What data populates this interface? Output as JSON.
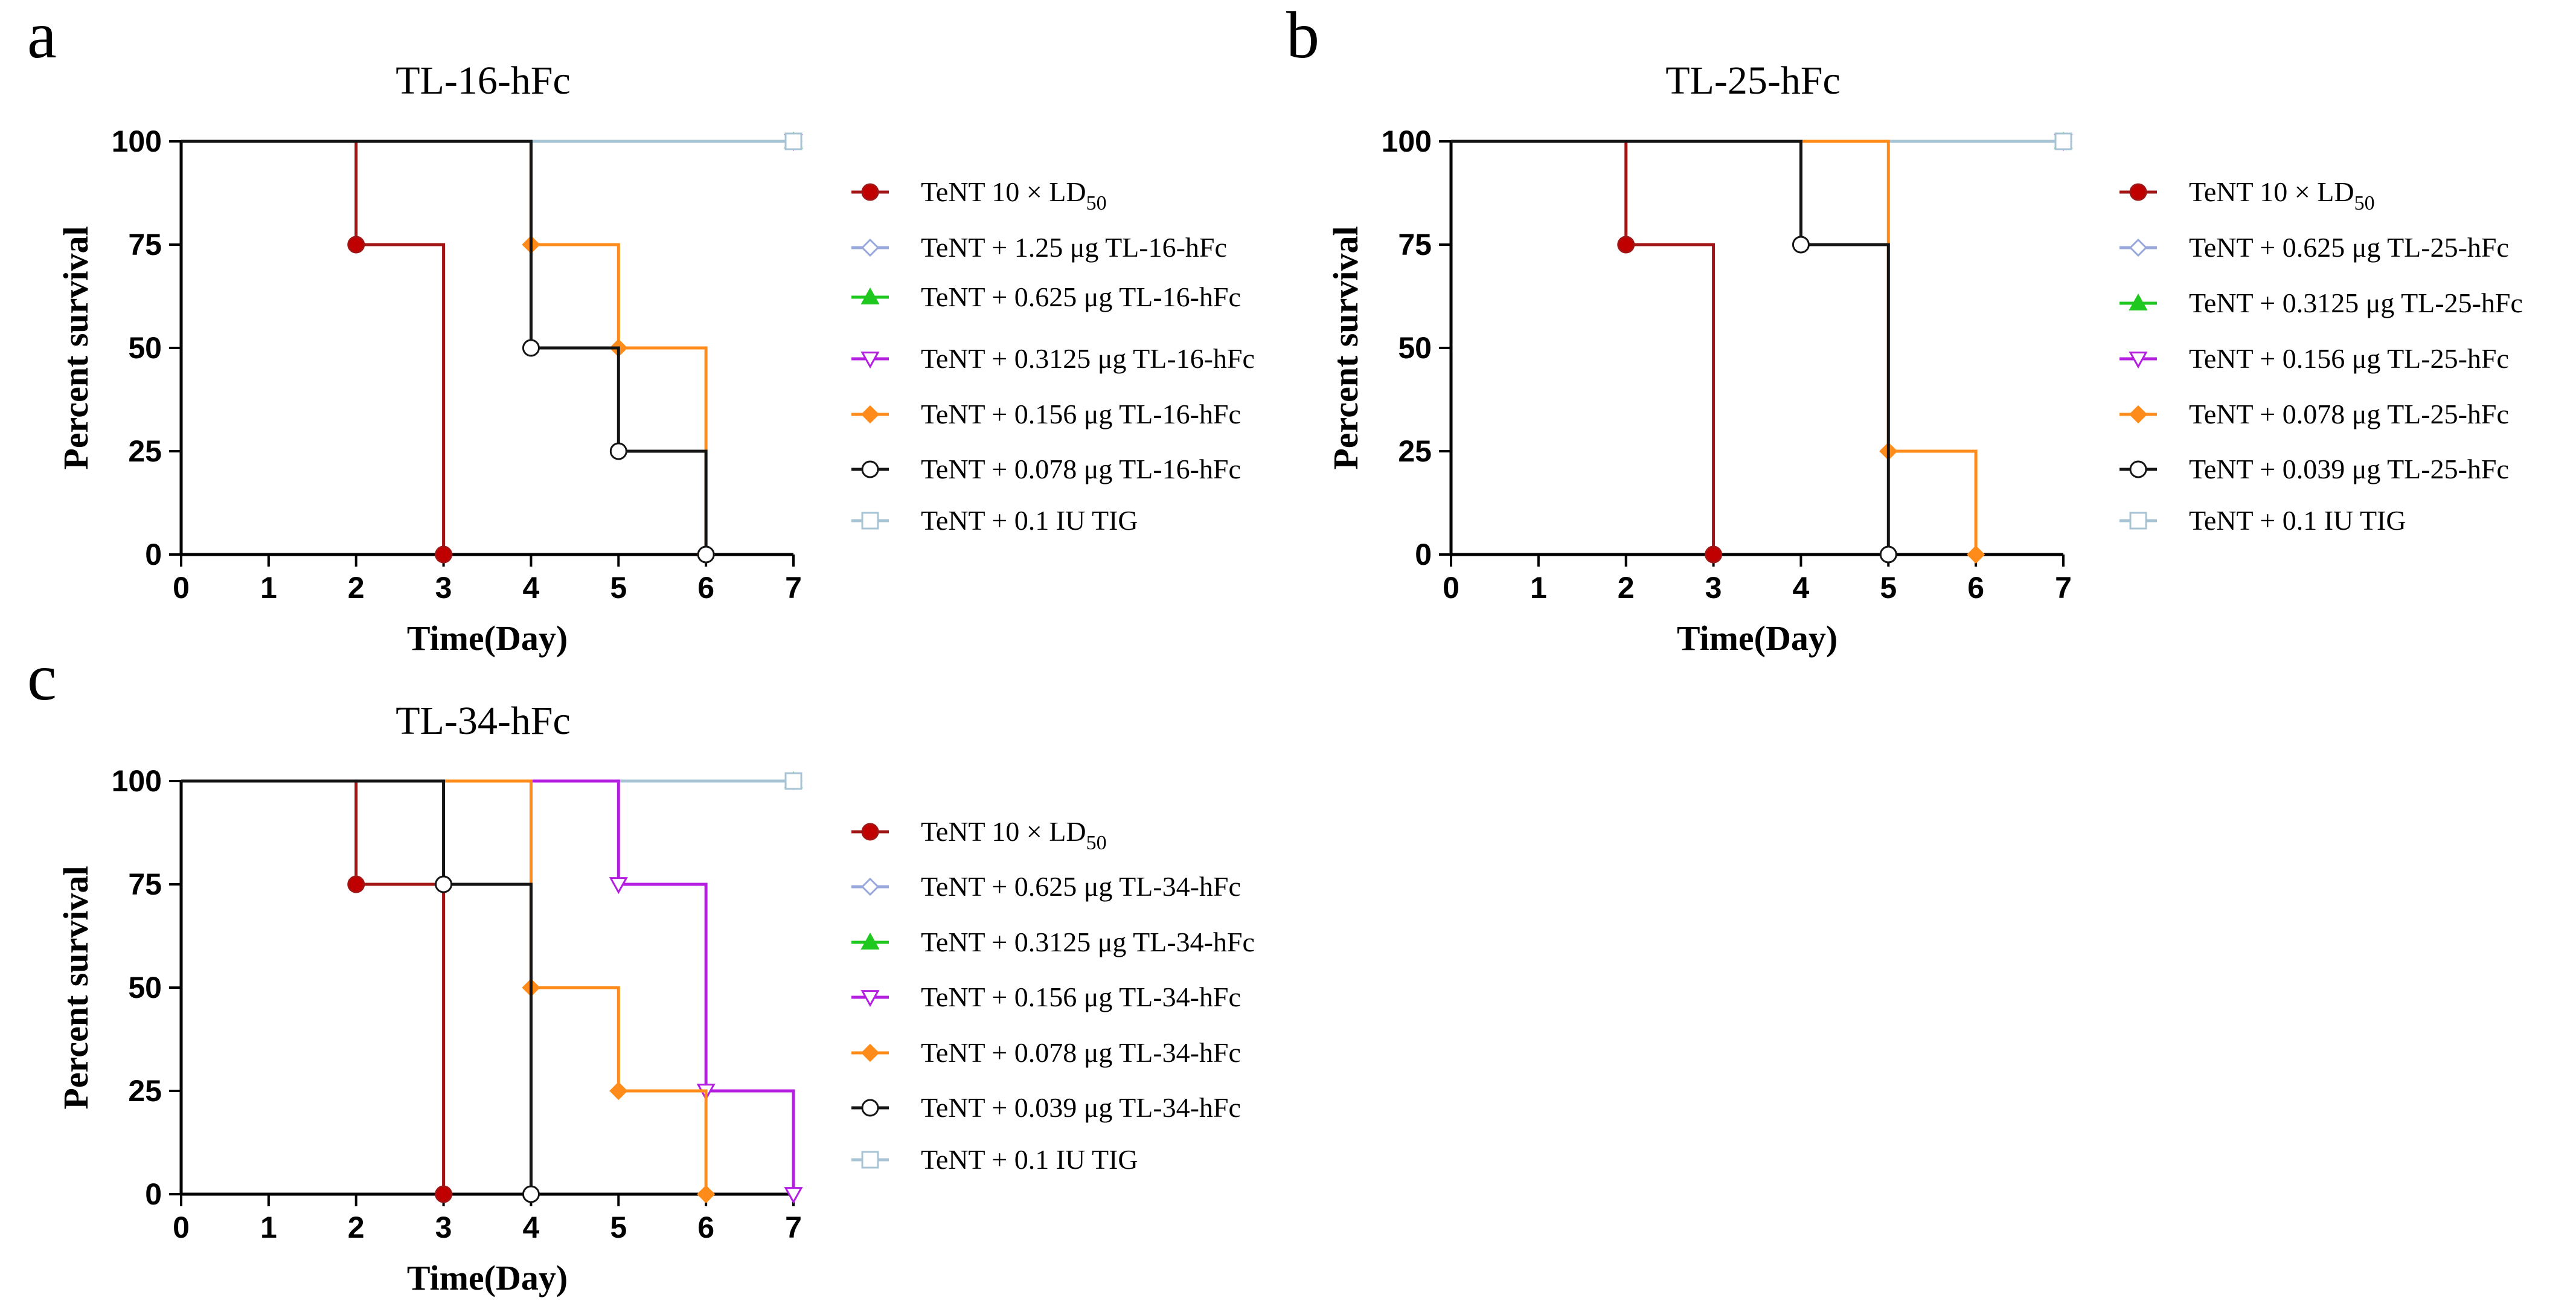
{
  "colors": {
    "TeNT": "#a31515",
    "TeNT_fill": "#c00000",
    "dose1": "#98a8dc",
    "dose2": "#1ec81e",
    "dose3": "#b41ee0",
    "dose4": "#ff8c1a",
    "dose5": "#141414",
    "TIG": "#a8c4d4"
  },
  "chart_data": [
    {
      "panel": "a",
      "type": "line",
      "subtype": "kaplan-meier",
      "title": "TL-16-hFc",
      "xlabel": "Time(Day)",
      "ylabel": "Percent survival",
      "xlim": [
        0,
        7
      ],
      "ylim": [
        0,
        100
      ],
      "xticks": [
        0,
        1,
        2,
        3,
        4,
        5,
        6,
        7
      ],
      "yticks": [
        0,
        25,
        50,
        75,
        100
      ],
      "legend_position": "right",
      "series": [
        {
          "name": "TeNT  10 × LD",
          "sub": "50",
          "marker": "circle-filled",
          "color_key": "TeNT",
          "steps": [
            [
              0,
              100
            ],
            [
              2,
              75
            ],
            [
              3,
              0
            ]
          ],
          "end": 3
        },
        {
          "name": "TeNT + 1.25 μg TL-16-hFc",
          "marker": "diamond-open",
          "color_key": "dose1",
          "steps": [
            [
              0,
              100
            ]
          ],
          "end": 7
        },
        {
          "name": "TeNT + 0.625 μg TL-16-hFc",
          "marker": "triangle-filled",
          "color_key": "dose2",
          "steps": [
            [
              0,
              100
            ]
          ],
          "end": 7
        },
        {
          "name": "TeNT + 0.3125 μg TL-16-hFc",
          "marker": "triangle-down-open",
          "color_key": "dose3",
          "steps": [
            [
              0,
              100
            ]
          ],
          "end": 7
        },
        {
          "name": "TeNT + 0.156 μg TL-16-hFc",
          "marker": "diamond-filled",
          "color_key": "dose4",
          "steps": [
            [
              0,
              100
            ],
            [
              4,
              75
            ],
            [
              5,
              50
            ],
            [
              6,
              0
            ]
          ],
          "end": 6
        },
        {
          "name": "TeNT + 0.078  μg TL-16-hFc",
          "marker": "circle-open",
          "color_key": "dose5",
          "steps": [
            [
              0,
              100
            ],
            [
              4,
              50
            ],
            [
              5,
              25
            ],
            [
              6,
              0
            ]
          ],
          "end": 6
        },
        {
          "name": "TeNT + 0.1 IU TIG",
          "marker": "square-open",
          "color_key": "TIG",
          "steps": [
            [
              0,
              100
            ]
          ],
          "end": 7
        }
      ]
    },
    {
      "panel": "b",
      "type": "line",
      "subtype": "kaplan-meier",
      "title": "TL-25-hFc",
      "xlabel": "Time(Day)",
      "ylabel": "Percent survival",
      "xlim": [
        0,
        7
      ],
      "ylim": [
        0,
        100
      ],
      "xticks": [
        0,
        1,
        2,
        3,
        4,
        5,
        6,
        7
      ],
      "yticks": [
        0,
        25,
        50,
        75,
        100
      ],
      "legend_position": "right",
      "series": [
        {
          "name": "TeNT  10 × LD",
          "sub": "50",
          "marker": "circle-filled",
          "color_key": "TeNT",
          "steps": [
            [
              0,
              100
            ],
            [
              2,
              75
            ],
            [
              3,
              0
            ]
          ],
          "end": 3
        },
        {
          "name": "TeNT + 0.625 μg TL-25-hFc",
          "marker": "diamond-open",
          "color_key": "dose1",
          "steps": [
            [
              0,
              100
            ]
          ],
          "end": 7
        },
        {
          "name": "TeNT + 0.3125 μg TL-25-hFc",
          "marker": "triangle-filled",
          "color_key": "dose2",
          "steps": [
            [
              0,
              100
            ]
          ],
          "end": 7
        },
        {
          "name": "TeNT + 0.156 μg TL-25-hFc",
          "marker": "triangle-down-open",
          "color_key": "dose3",
          "steps": [
            [
              0,
              100
            ]
          ],
          "end": 7
        },
        {
          "name": "TeNT + 0.078 μg TL-25-hFc",
          "marker": "diamond-filled",
          "color_key": "dose4",
          "steps": [
            [
              0,
              100
            ],
            [
              5,
              25
            ],
            [
              6,
              0
            ]
          ],
          "end": 6
        },
        {
          "name": "TeNT + 0.039 μg TL-25-hFc",
          "marker": "circle-open",
          "color_key": "dose5",
          "steps": [
            [
              0,
              100
            ],
            [
              4,
              75
            ],
            [
              5,
              0
            ]
          ],
          "end": 5
        },
        {
          "name": "TeNT + 0.1 IU TIG",
          "marker": "square-open",
          "color_key": "TIG",
          "steps": [
            [
              0,
              100
            ]
          ],
          "end": 7
        }
      ]
    },
    {
      "panel": "c",
      "type": "line",
      "subtype": "kaplan-meier",
      "title": "TL-34-hFc",
      "xlabel": "Time(Day)",
      "ylabel": "Percent survival",
      "xlim": [
        0,
        7
      ],
      "ylim": [
        0,
        100
      ],
      "xticks": [
        0,
        1,
        2,
        3,
        4,
        5,
        6,
        7
      ],
      "yticks": [
        0,
        25,
        50,
        75,
        100
      ],
      "legend_position": "right",
      "series": [
        {
          "name": "TeNT  10 × LD",
          "sub": "50",
          "marker": "circle-filled",
          "color_key": "TeNT",
          "steps": [
            [
              0,
              100
            ],
            [
              2,
              75
            ],
            [
              3,
              0
            ]
          ],
          "end": 3
        },
        {
          "name": "TeNT + 0.625 μg TL-34-hFc",
          "marker": "diamond-open",
          "color_key": "dose1",
          "steps": [
            [
              0,
              100
            ]
          ],
          "end": 7
        },
        {
          "name": "TeNT + 0.3125 μg TL-34-hFc",
          "marker": "triangle-filled",
          "color_key": "dose2",
          "steps": [
            [
              0,
              100
            ]
          ],
          "end": 7
        },
        {
          "name": "TeNT + 0.156 μg TL-34-hFc",
          "marker": "triangle-down-open",
          "color_key": "dose3",
          "steps": [
            [
              0,
              100
            ],
            [
              5,
              75
            ],
            [
              6,
              25
            ],
            [
              7,
              0
            ]
          ],
          "end": 7
        },
        {
          "name": "TeNT + 0.078 μg TL-34-hFc",
          "marker": "diamond-filled",
          "color_key": "dose4",
          "steps": [
            [
              0,
              100
            ],
            [
              4,
              50
            ],
            [
              5,
              25
            ],
            [
              6,
              0
            ]
          ],
          "end": 6
        },
        {
          "name": "TeNT + 0.039 μg TL-34-hFc",
          "marker": "circle-open",
          "color_key": "dose5",
          "steps": [
            [
              0,
              100
            ],
            [
              3,
              75
            ],
            [
              4,
              0
            ]
          ],
          "end": 4
        },
        {
          "name": "TeNT + 0.1 IU TIG",
          "marker": "square-open",
          "color_key": "TIG",
          "steps": [
            [
              0,
              100
            ]
          ],
          "end": 7
        }
      ]
    }
  ]
}
